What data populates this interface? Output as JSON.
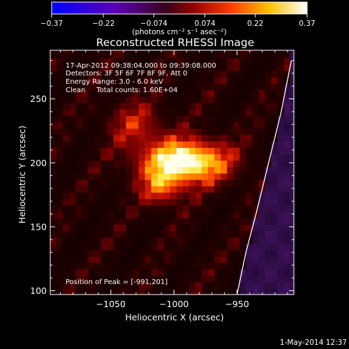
{
  "chart_data": {
    "type": "heatmap",
    "title": "Reconstructed RHESSI Image",
    "xlabel": "Heliocentric X (arcsec)",
    "ylabel": "Heliocentric Y (arcsec)",
    "x_ticks": [
      -1050,
      -1000,
      -950
    ],
    "x_tick_labels": [
      "−1050",
      "−1000",
      "−950"
    ],
    "y_ticks": [
      100,
      150,
      200,
      250
    ],
    "y_tick_labels": [
      "100",
      "150",
      "200",
      "250"
    ],
    "xlim": [
      -1098,
      -905
    ],
    "ylim": [
      97,
      288
    ],
    "colorbar": {
      "ticks": [
        -0.37,
        -0.22,
        -0.074,
        0.074,
        0.22,
        0.37
      ],
      "tick_labels": [
        "−0.37",
        "−0.22",
        "−0.074",
        "0.074",
        "0.22",
        "0.37"
      ],
      "units_label": "(photons cm⁻² s⁻¹ asec⁻²)",
      "range": [
        -0.37,
        0.37
      ],
      "colors": [
        "#0000ff",
        "#5500aa",
        "#330033",
        "#aa0000",
        "#ff5500",
        "#ffcc00",
        "#ffffff"
      ]
    },
    "peak": {
      "x": -991,
      "y": 201,
      "value": 0.37
    },
    "annotations": [
      "17-Apr-2012 09:38:04.000 to 09:39:08.000",
      "Detectors: 3F 5F 6F 7F 8F 9F, Att 0",
      "Energy Range: 3.0 - 6.0 keV",
      "Clean     Total counts: 1.60E+04"
    ],
    "peak_label": "Position of Peak = [-991,201]",
    "limb_curve": [
      [
        -950,
        97
      ],
      [
        -943,
        130
      ],
      [
        -935,
        160
      ],
      [
        -925,
        200
      ],
      [
        -915,
        240
      ],
      [
        -907,
        280
      ]
    ]
  },
  "footer": {
    "timestamp": "1-May-2014 12:37"
  }
}
